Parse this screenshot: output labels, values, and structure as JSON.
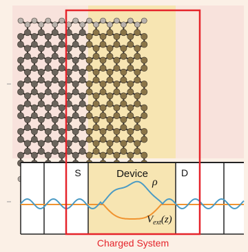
{
  "figure": {
    "colors": {
      "page_bg": "#fbf0e6",
      "lead_bg": "#f8e2dc",
      "device_bg": "#f7e5b2",
      "frame": "#e5232a",
      "carbon_atom": "#6b645c",
      "device_atom": "#8a7548",
      "hydrogen_atom": "#b9b2ac",
      "bond": "#3d3833",
      "density_curve": "#4a9ac4",
      "potential_curve": "#f0932f",
      "grid_line": "#222222"
    },
    "regions": {
      "source_label": "S",
      "device_label": "Device",
      "drain_label": "D"
    },
    "curves": {
      "density_symbol": "ρ",
      "potential_symbol_main": "V",
      "potential_symbol_sub": "ext",
      "potential_symbol_arg": "(z)"
    },
    "frame_caption": "Charged System"
  }
}
